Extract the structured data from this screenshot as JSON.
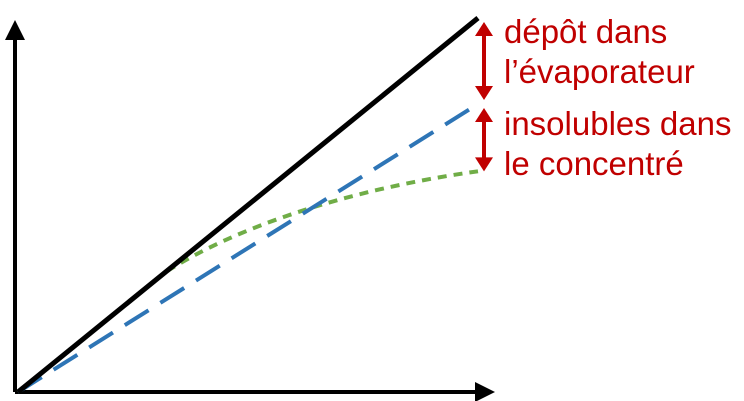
{
  "colors": {
    "axes": "#000000",
    "total_line": "#000000",
    "dashed_line": "#2e75b6",
    "dotted_line": "#70ad47",
    "annotation": "#c00000"
  },
  "annotations": {
    "deposit": {
      "line1": "dépôt dans",
      "line2": "l’évaporateur"
    },
    "insolubles": {
      "line1": "insolubles dans",
      "line2": "le concentré"
    }
  },
  "relative_values": {
    "solid_end": 1.0,
    "dashed_end": 0.77,
    "dotted_end": 0.59
  }
}
